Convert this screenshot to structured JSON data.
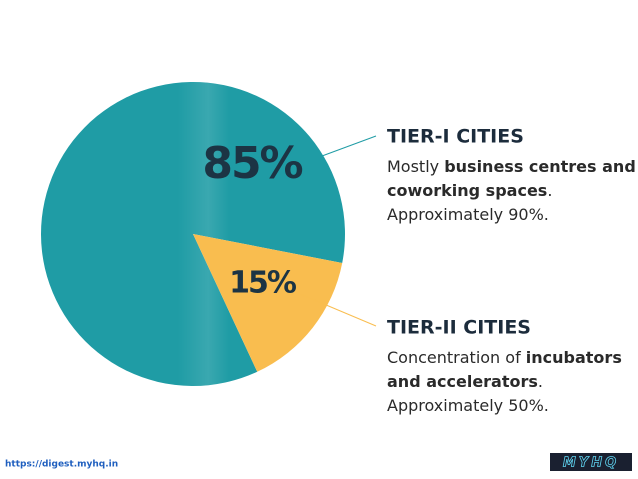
{
  "chart_data": {
    "type": "pie",
    "categories": [
      "TIER-I CITIES",
      "TIER-II CITIES"
    ],
    "values": [
      85,
      15
    ],
    "value_labels": [
      "85%",
      "15%"
    ],
    "colors": [
      "#1f9ca5",
      "#f9bd4f"
    ],
    "descriptions": [
      [
        [
          {
            "text": "Mostly "
          },
          {
            "text": "business centres and",
            "bold": true
          }
        ],
        [
          {
            "text": "coworking spaces",
            "bold": true
          },
          {
            "text": "."
          }
        ],
        [
          {
            "text": "Approximately 90%."
          }
        ]
      ],
      [
        [
          {
            "text": "Concentration of "
          },
          {
            "text": "incubators",
            "bold": true
          }
        ],
        [
          {
            "text": "and accelerators",
            "bold": true
          },
          {
            "text": "."
          }
        ],
        [
          {
            "text": "Approximately 50%."
          }
        ]
      ]
    ]
  },
  "footer": {
    "url": "https://digest.myhq.in",
    "logo": "MYHQ"
  }
}
